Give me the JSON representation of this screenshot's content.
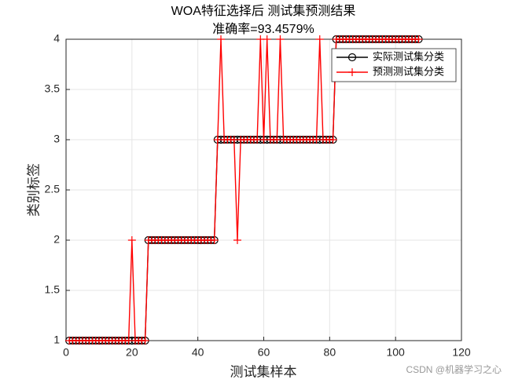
{
  "chart_data": {
    "type": "line",
    "title": "WOA特征选择后 测试集预测结果",
    "subtitle": "准确率=93.4579%",
    "xlabel": "测试集样本",
    "ylabel": "类别标签",
    "watermark": "CSDN @机器学习之心",
    "x": [
      1,
      2,
      3,
      4,
      5,
      6,
      7,
      8,
      9,
      10,
      11,
      12,
      13,
      14,
      15,
      16,
      17,
      18,
      19,
      20,
      21,
      22,
      23,
      24,
      25,
      26,
      27,
      28,
      29,
      30,
      31,
      32,
      33,
      34,
      35,
      36,
      37,
      38,
      39,
      40,
      41,
      42,
      43,
      44,
      45,
      46,
      47,
      48,
      49,
      50,
      51,
      52,
      53,
      54,
      55,
      56,
      57,
      58,
      59,
      60,
      61,
      62,
      63,
      64,
      65,
      66,
      67,
      68,
      69,
      70,
      71,
      72,
      73,
      74,
      75,
      76,
      77,
      78,
      79,
      80,
      81,
      82,
      83,
      84,
      85,
      86,
      87,
      88,
      89,
      90,
      91,
      92,
      93,
      94,
      95,
      96,
      97,
      98,
      99,
      100,
      101,
      102,
      103,
      104,
      105,
      106,
      107
    ],
    "series": [
      {
        "name": "实际测试集分类",
        "color": "#000000",
        "marker": "circle",
        "values": [
          1,
          1,
          1,
          1,
          1,
          1,
          1,
          1,
          1,
          1,
          1,
          1,
          1,
          1,
          1,
          1,
          1,
          1,
          1,
          1,
          1,
          1,
          1,
          1,
          2,
          2,
          2,
          2,
          2,
          2,
          2,
          2,
          2,
          2,
          2,
          2,
          2,
          2,
          2,
          2,
          2,
          2,
          2,
          2,
          2,
          3,
          3,
          3,
          3,
          3,
          3,
          3,
          3,
          3,
          3,
          3,
          3,
          3,
          3,
          3,
          3,
          3,
          3,
          3,
          3,
          3,
          3,
          3,
          3,
          3,
          3,
          3,
          3,
          3,
          3,
          3,
          3,
          3,
          3,
          3,
          3,
          4,
          4,
          4,
          4,
          4,
          4,
          4,
          4,
          4,
          4,
          4,
          4,
          4,
          4,
          4,
          4,
          4,
          4,
          4,
          4,
          4,
          4,
          4,
          4,
          4,
          4
        ]
      },
      {
        "name": "预测测试集分类",
        "color": "#ff0000",
        "marker": "plus",
        "values": [
          1,
          1,
          1,
          1,
          1,
          1,
          1,
          1,
          1,
          1,
          1,
          1,
          1,
          1,
          1,
          1,
          1,
          1,
          1,
          2,
          1,
          1,
          1,
          1,
          2,
          2,
          2,
          2,
          2,
          2,
          2,
          2,
          2,
          2,
          2,
          2,
          2,
          2,
          2,
          2,
          2,
          2,
          2,
          2,
          2,
          3,
          4,
          3,
          3,
          3,
          3,
          2,
          3,
          3,
          3,
          3,
          3,
          3,
          4,
          3,
          4,
          3,
          3,
          3,
          4,
          3,
          3,
          3,
          3,
          3,
          3,
          3,
          3,
          3,
          3,
          3,
          4,
          3,
          3,
          3,
          3,
          4,
          4,
          4,
          4,
          4,
          4,
          4,
          4,
          4,
          4,
          4,
          4,
          4,
          4,
          4,
          4,
          4,
          4,
          4,
          4,
          4,
          4,
          4,
          4,
          4,
          4
        ]
      }
    ],
    "xlim": [
      0,
      120
    ],
    "xticks": [
      0,
      20,
      40,
      60,
      80,
      100,
      120
    ],
    "ylim": [
      1,
      4
    ],
    "yticks": [
      1,
      1.5,
      2,
      2.5,
      3,
      3.5,
      4
    ],
    "grid": true,
    "legend": "northeast"
  }
}
